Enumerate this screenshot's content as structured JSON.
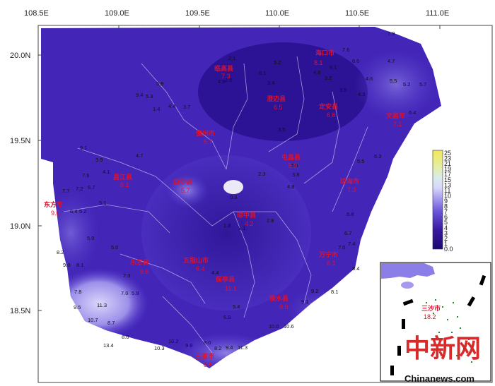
{
  "axes": {
    "lon_labels": [
      "108.5E",
      "109.0E",
      "109.5E",
      "110.0E",
      "110.5E",
      "111.0E"
    ],
    "lat_labels": [
      "20.0N",
      "19.5N",
      "19.0N",
      "18.5N"
    ]
  },
  "cities": [
    {
      "name": "东方市",
      "value": "9.0"
    },
    {
      "name": "昌江县",
      "value": "8.1"
    },
    {
      "name": "儋州市",
      "value": "5.7"
    },
    {
      "name": "临高县",
      "value": "7.3"
    },
    {
      "name": "澄迈县",
      "value": "6.5"
    },
    {
      "name": "海口市",
      "value": "8.1"
    },
    {
      "name": "文昌市",
      "value": "7.1"
    },
    {
      "name": "定安县",
      "value": "6.6"
    },
    {
      "name": "屯昌县",
      "value": "5.3"
    },
    {
      "name": "白沙县",
      "value": "5.7"
    },
    {
      "name": "琼中县",
      "value": "4.2"
    },
    {
      "name": "琼海市",
      "value": "7.3"
    },
    {
      "name": "万宁市",
      "value": "8.1"
    },
    {
      "name": "五指山市",
      "value": "6.4"
    },
    {
      "name": "乐东县",
      "value": "8.6"
    },
    {
      "name": "保亭县",
      "value": "11.1"
    },
    {
      "name": "陵水县",
      "value": "9.6"
    },
    {
      "name": "三亚市",
      "value": "8.5"
    },
    {
      "name": "三沙市",
      "value": "18.2"
    }
  ],
  "station_values": [
    "9.4",
    "5.3",
    "5.8",
    "4.4",
    "3.7",
    "1.4",
    "2.5",
    "2.1",
    "4.9",
    "6.1",
    "5.2",
    "3.4",
    "3.5",
    "4.6",
    "3.2",
    "6.1",
    "7.6",
    "6.0",
    "4.7",
    "5.5",
    "5.2",
    "5.7",
    "6.4",
    "4.6",
    "4.3",
    "3.9",
    "7.9",
    "9.1",
    "3.9",
    "4.1",
    "7.6",
    "7.7",
    "7.2",
    "6.7",
    "5.1",
    "6.4",
    "5.2",
    "5.0",
    "4.7",
    "5.0",
    "8.2",
    "9.0",
    "8.1",
    "7.8",
    "9.5",
    "11.3",
    "10.7",
    "8.7",
    "7.0",
    "5.9",
    "7.3",
    "13.4",
    "8.0",
    "10.3",
    "10.2",
    "9.9",
    "8.0",
    "8.2",
    "9.4",
    "11.3",
    "10.0",
    "10.6",
    "9.2",
    "8.1",
    "8.4",
    "7.0",
    "7.4",
    "6.7",
    "6.8",
    "5.5",
    "6.3",
    "3.1",
    "2.8",
    "2.3",
    "1.8",
    "2.6",
    "3.8",
    "4.4",
    "4.8",
    "5.4",
    "6.9",
    "9.1",
    "0.3"
  ],
  "legend": {
    "ticks": [
      "25",
      "23",
      "21",
      "19",
      "17",
      "15",
      "13",
      "11",
      "10",
      "9",
      "8",
      "7",
      "6",
      "5",
      "4",
      "3",
      "2",
      "1",
      "0.0"
    ]
  },
  "inset": {
    "label": "三沙市",
    "value": "18.2"
  },
  "watermark": {
    "main": "中新网",
    "url": "Chinanews.com"
  },
  "colors": {
    "low": "#3a1aa0",
    "mid": "#6a55d8",
    "high": "#b8b0f2",
    "accent": "#e0102a"
  }
}
